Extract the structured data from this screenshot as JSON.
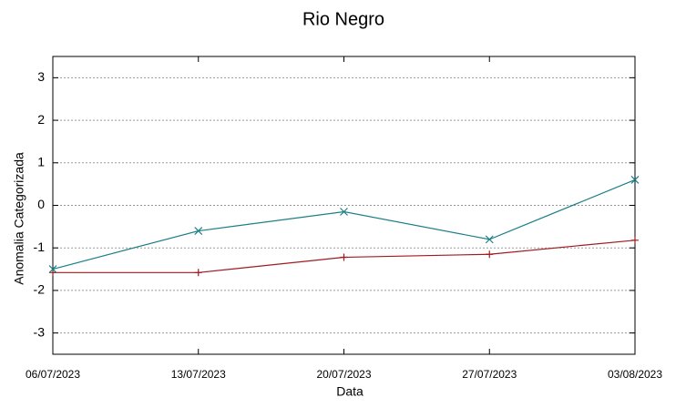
{
  "chart_data": {
    "type": "line",
    "title": "Rio Negro",
    "x_label": "Data",
    "y_label": "Anomalia Categorizada",
    "categories": [
      "06/07/2023",
      "13/07/2023",
      "20/07/2023",
      "27/07/2023",
      "03/08/2023"
    ],
    "series": [
      {
        "color": "#a01a20",
        "marker": "+",
        "values": [
          -1.58,
          -1.58,
          -1.22,
          -1.15,
          -0.82
        ]
      },
      {
        "color": "#1b7f86",
        "marker": "x",
        "values": [
          -1.5,
          -0.6,
          -0.15,
          -0.8,
          0.6
        ]
      }
    ],
    "ylim": [
      -3.5,
      3.5
    ],
    "yticks": [
      -3,
      -2,
      -1,
      0,
      1,
      2,
      3
    ],
    "grid": true
  }
}
